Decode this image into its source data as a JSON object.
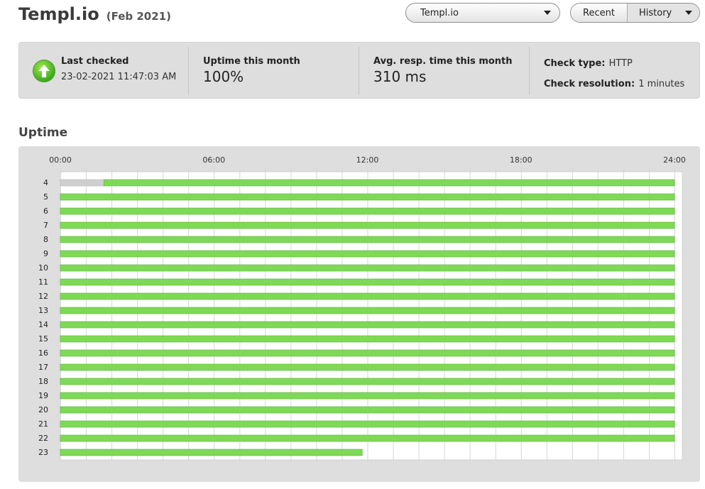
{
  "header": {
    "title": "Templ.io",
    "period": "(Feb 2021)"
  },
  "monitor_select": {
    "value": "Templ.io"
  },
  "view_toggle": {
    "recent": "Recent",
    "history": "History",
    "active": "History"
  },
  "stats": {
    "status_icon": "up-arrow-icon",
    "last_checked_label": "Last checked",
    "last_checked_value": "23-02-2021 11:47:03 AM",
    "uptime_label": "Uptime this month",
    "uptime_value": "100%",
    "resp_label": "Avg. resp. time this month",
    "resp_value": "310 ms",
    "check_type_label": "Check type:",
    "check_type_value": "HTTP",
    "check_res_label": "Check resolution:",
    "check_res_value": "1 minutes"
  },
  "uptime_section": {
    "title": "Uptime"
  },
  "chart_data": {
    "type": "timeline",
    "x_ticks": [
      "00:00",
      "06:00",
      "12:00",
      "18:00",
      "24:00"
    ],
    "x_range_hours": [
      0,
      24
    ],
    "colors": {
      "up": "#7ed957",
      "no_data": "#cfcfcf"
    },
    "rows": [
      {
        "day": "4",
        "segments": [
          {
            "start": 0,
            "end": 1.7,
            "status": "no_data"
          },
          {
            "start": 1.7,
            "end": 24,
            "status": "up"
          }
        ]
      },
      {
        "day": "5",
        "segments": [
          {
            "start": 0,
            "end": 24,
            "status": "up"
          }
        ]
      },
      {
        "day": "6",
        "segments": [
          {
            "start": 0,
            "end": 24,
            "status": "up"
          }
        ]
      },
      {
        "day": "7",
        "segments": [
          {
            "start": 0,
            "end": 24,
            "status": "up"
          }
        ]
      },
      {
        "day": "8",
        "segments": [
          {
            "start": 0,
            "end": 24,
            "status": "up"
          }
        ]
      },
      {
        "day": "9",
        "segments": [
          {
            "start": 0,
            "end": 24,
            "status": "up"
          }
        ]
      },
      {
        "day": "10",
        "segments": [
          {
            "start": 0,
            "end": 24,
            "status": "up"
          }
        ]
      },
      {
        "day": "11",
        "segments": [
          {
            "start": 0,
            "end": 24,
            "status": "up"
          }
        ]
      },
      {
        "day": "12",
        "segments": [
          {
            "start": 0,
            "end": 24,
            "status": "up"
          }
        ]
      },
      {
        "day": "13",
        "segments": [
          {
            "start": 0,
            "end": 24,
            "status": "up"
          }
        ]
      },
      {
        "day": "14",
        "segments": [
          {
            "start": 0,
            "end": 24,
            "status": "up"
          }
        ]
      },
      {
        "day": "15",
        "segments": [
          {
            "start": 0,
            "end": 24,
            "status": "up"
          }
        ]
      },
      {
        "day": "16",
        "segments": [
          {
            "start": 0,
            "end": 24,
            "status": "up"
          }
        ]
      },
      {
        "day": "17",
        "segments": [
          {
            "start": 0,
            "end": 24,
            "status": "up"
          }
        ]
      },
      {
        "day": "18",
        "segments": [
          {
            "start": 0,
            "end": 24,
            "status": "up"
          }
        ]
      },
      {
        "day": "19",
        "segments": [
          {
            "start": 0,
            "end": 24,
            "status": "up"
          }
        ]
      },
      {
        "day": "20",
        "segments": [
          {
            "start": 0,
            "end": 24,
            "status": "up"
          }
        ]
      },
      {
        "day": "21",
        "segments": [
          {
            "start": 0,
            "end": 24,
            "status": "up"
          }
        ]
      },
      {
        "day": "22",
        "segments": [
          {
            "start": 0,
            "end": 24,
            "status": "up"
          }
        ]
      },
      {
        "day": "23",
        "segments": [
          {
            "start": 0,
            "end": 11.8,
            "status": "up"
          }
        ]
      }
    ]
  }
}
